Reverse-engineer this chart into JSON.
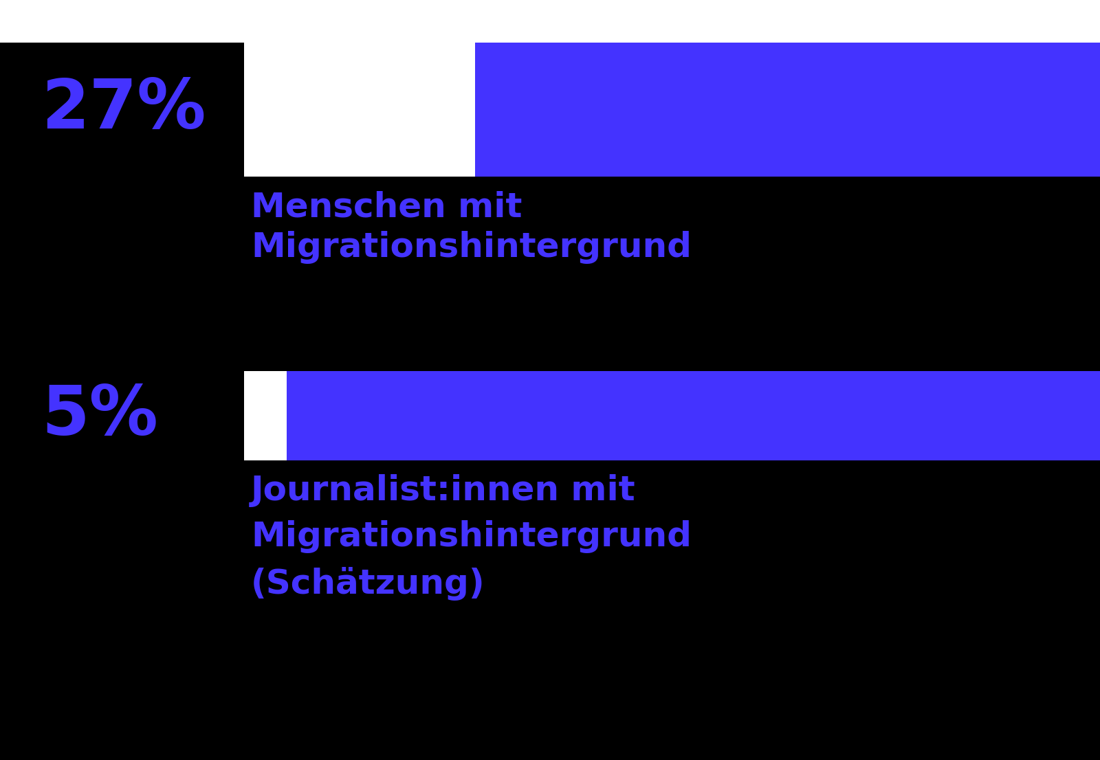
{
  "background_color": "#000000",
  "top_background_color": "#ffffff",
  "bar_color": "#4433FF",
  "text_color": "#4433FF",
  "bar1_value": 27,
  "bar2_value": 5,
  "bar1_label": "27%",
  "bar2_label": "5%",
  "bar1_text_line1": "Menschen mit",
  "bar1_text_line2": "Migrationshintergrund",
  "bar2_text_line1": "Journalist:innen mit",
  "bar2_text_line2": "Migrationshintergrund",
  "bar2_text_line3": "(Schätzung)",
  "fig_width": 16.0,
  "fig_height": 11.06
}
